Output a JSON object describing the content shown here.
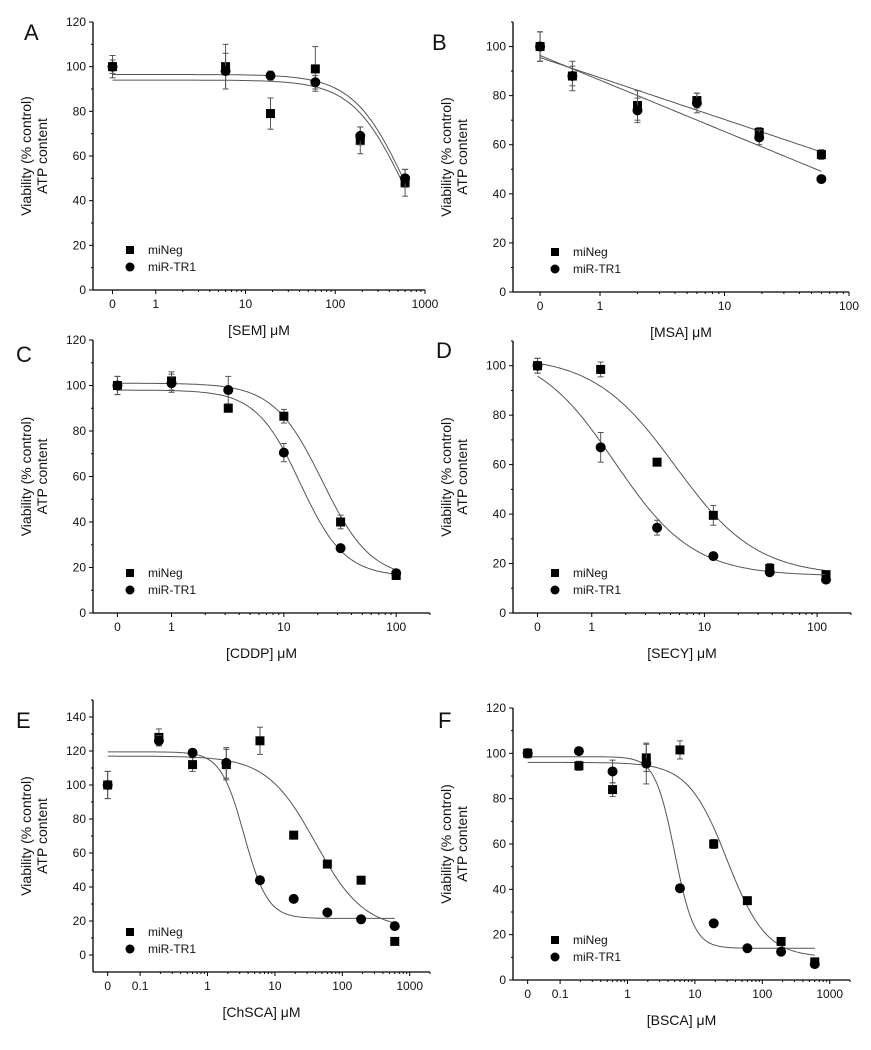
{
  "chart_data": [
    {
      "type": "scatter",
      "panel": "A",
      "xlabel": "[SEM] μM",
      "ylabel": [
        "Viability (% control)",
        "ATP content"
      ],
      "xscale": "log",
      "zero_position": 0.33,
      "xlim": [
        0.2,
        1000
      ],
      "ylim": [
        0,
        120
      ],
      "yticks": [
        0,
        20,
        40,
        60,
        80,
        100,
        120
      ],
      "xticks": [
        "0",
        "1",
        "10",
        "100",
        "1000"
      ],
      "legend": "bottom-left",
      "x": [
        0,
        6,
        19,
        60,
        190,
        600
      ],
      "series": [
        {
          "name": "miNeg",
          "marker": "square",
          "values": [
            100,
            100,
            79,
            99,
            67,
            48
          ],
          "err": [
            5,
            10,
            7,
            10,
            6,
            6
          ],
          "fit": {
            "type": "4pl",
            "top": 94,
            "bottom": 0,
            "ic50": 580,
            "hill": 1.5
          }
        },
        {
          "name": "miR-TR1",
          "marker": "circle",
          "values": [
            100,
            98,
            96,
            93,
            69,
            50
          ],
          "err": [
            3,
            8,
            2,
            3,
            4,
            4
          ],
          "fit": {
            "type": "4pl",
            "top": 96.5,
            "bottom": 0,
            "ic50": 600,
            "hill": 1.5
          }
        }
      ]
    },
    {
      "type": "scatter",
      "panel": "B",
      "xlabel": "[MSA] μM",
      "ylabel": [
        "Viability (% control)",
        "ATP content"
      ],
      "xscale": "log",
      "zero_position": 0.33,
      "xlim": [
        0.2,
        100
      ],
      "ylim": [
        0,
        110
      ],
      "yticks": [
        0,
        20,
        40,
        60,
        80,
        100
      ],
      "xticks": [
        "0",
        "1",
        "10",
        "100"
      ],
      "legend": "bottom-left",
      "x": [
        0,
        0.6,
        2,
        6,
        19,
        60
      ],
      "series": [
        {
          "name": "miNeg",
          "marker": "square",
          "values": [
            100,
            88,
            76,
            78,
            65,
            56
          ],
          "err": [
            6,
            6,
            6,
            3,
            2,
            2
          ],
          "fit": {
            "type": "loglinear",
            "intercept": 87.3,
            "slope": -17
          }
        },
        {
          "name": "miR-TR1",
          "marker": "circle",
          "values": [
            100,
            88,
            74,
            77,
            63,
            46
          ],
          "err": [
            6,
            4,
            5,
            4,
            3,
            1
          ],
          "fit": {
            "type": "loglinear",
            "intercept": 86.3,
            "slope": -20.9
          }
        }
      ]
    },
    {
      "type": "scatter",
      "panel": "C",
      "xlabel": "[CDDP] μM",
      "ylabel": [
        "Viability (% control)",
        "ATP content"
      ],
      "xscale": "log",
      "zero_position": 0.33,
      "xlim": [
        0.2,
        200
      ],
      "ylim": [
        0,
        120
      ],
      "yticks": [
        0,
        20,
        40,
        60,
        80,
        100,
        120
      ],
      "xticks": [
        "0",
        "1",
        "10",
        "100"
      ],
      "legend": "bottom-left",
      "x": [
        0,
        1,
        3.2,
        10,
        32,
        100
      ],
      "series": [
        {
          "name": "miNeg",
          "marker": "square",
          "values": [
            100,
            102,
            90,
            86.5,
            40,
            16.5
          ],
          "err": [
            4,
            4,
            0,
            3,
            3,
            1
          ],
          "fit": {
            "type": "4pl",
            "top": 101,
            "bottom": 15,
            "ic50": 22,
            "hill": 2
          }
        },
        {
          "name": "miR-TR1",
          "marker": "circle",
          "values": [
            100,
            101,
            98,
            70.5,
            28.5,
            17.5
          ],
          "err": [
            4,
            4,
            6,
            4,
            1,
            1
          ],
          "fit": {
            "type": "4pl",
            "top": 98,
            "bottom": 16,
            "ic50": 14,
            "hill": 2.2
          }
        }
      ]
    },
    {
      "type": "scatter",
      "panel": "D",
      "xlabel": "[SECY] μM",
      "ylabel": [
        "Viability (% control)",
        "ATP content"
      ],
      "xscale": "log",
      "zero_position": 0.33,
      "xlim": [
        0.2,
        200
      ],
      "ylim": [
        0,
        110
      ],
      "yticks": [
        0,
        20,
        40,
        60,
        80,
        100
      ],
      "xticks": [
        "0",
        "1",
        "10",
        "100"
      ],
      "legend": "bottom-left",
      "x": [
        0,
        1.2,
        3.8,
        12,
        38,
        120
      ],
      "series": [
        {
          "name": "miNeg",
          "marker": "square",
          "values": [
            100,
            98.5,
            61,
            39.5,
            18,
            15.5
          ],
          "err": [
            3,
            3,
            1,
            4,
            2,
            1
          ],
          "fit": {
            "type": "4pl",
            "top": 104,
            "bottom": 15,
            "ic50": 5.5,
            "hill": 1.2
          }
        },
        {
          "name": "miR-TR1",
          "marker": "circle",
          "values": [
            100,
            67,
            34.5,
            23,
            16.5,
            13.5
          ],
          "err": [
            3,
            6,
            3,
            1,
            1,
            1
          ],
          "fit": {
            "type": "4pl",
            "top": 107,
            "bottom": 15,
            "ic50": 1.6,
            "hill": 1.25
          }
        }
      ]
    },
    {
      "type": "scatter",
      "panel": "E",
      "xlabel": "[ChSCA] μM",
      "ylabel": [
        "Viability (% control)",
        "ATP content"
      ],
      "xscale": "log",
      "zero_position": 0.033,
      "xlim": [
        0.02,
        2000
      ],
      "ylim": [
        -10,
        150
      ],
      "yticks": [
        0,
        20,
        40,
        60,
        80,
        100,
        120,
        140
      ],
      "xticks": [
        "0",
        "0.1",
        "1",
        "10",
        "100",
        "1000"
      ],
      "legend": "bottom-left",
      "x": [
        0,
        0.19,
        0.6,
        1.9,
        6,
        19,
        60,
        190,
        600
      ],
      "series": [
        {
          "name": "miNeg",
          "marker": "square",
          "values": [
            100,
            128,
            112,
            112,
            126,
            70.5,
            53.5,
            44,
            8
          ],
          "err": [
            8,
            5,
            4,
            9,
            8,
            1,
            1,
            1,
            1
          ],
          "fit": {
            "type": "4pl",
            "top": 117,
            "bottom": 15,
            "ic50": 40,
            "hill": 1.2
          }
        },
        {
          "name": "miR-TR1",
          "marker": "circle",
          "values": [
            100,
            126,
            119,
            113,
            44,
            33,
            25,
            21,
            17
          ],
          "err": [
            8,
            3,
            1,
            9,
            1,
            1,
            1,
            1,
            1
          ],
          "fit": {
            "type": "4pl",
            "top": 119.5,
            "bottom": 21.5,
            "ic50": 3.5,
            "hill": 2.5
          }
        }
      ]
    },
    {
      "type": "scatter",
      "panel": "F",
      "xlabel": "[BSCA] μM",
      "ylabel": [
        "Viability (% control)",
        "ATP content"
      ],
      "xscale": "log",
      "zero_position": 0.033,
      "xlim": [
        0.02,
        2000
      ],
      "ylim": [
        0,
        120
      ],
      "yticks": [
        0,
        20,
        40,
        60,
        80,
        100,
        120
      ],
      "xticks": [
        "0",
        "0.1",
        "1",
        "10",
        "100",
        "1000"
      ],
      "legend": "bottom-left",
      "x": [
        0,
        0.19,
        0.6,
        1.9,
        6,
        19,
        60,
        190,
        600
      ],
      "series": [
        {
          "name": "miNeg",
          "marker": "square",
          "values": [
            100,
            94.5,
            84,
            98,
            101.5,
            60,
            35,
            17,
            8
          ],
          "err": [
            2,
            2,
            3,
            6,
            4,
            2,
            1,
            1,
            1
          ],
          "fit": {
            "type": "4pl",
            "top": 96,
            "bottom": 10,
            "ic50": 30,
            "hill": 1.5
          }
        },
        {
          "name": "miR-TR1",
          "marker": "circle",
          "values": [
            100,
            101,
            92,
            95.5,
            40.5,
            25,
            14,
            12.5,
            7
          ],
          "err": [
            2,
            1,
            5,
            9,
            1,
            1,
            1,
            1,
            1
          ],
          "fit": {
            "type": "4pl",
            "top": 98.5,
            "bottom": 14,
            "ic50": 5,
            "hill": 3
          }
        }
      ]
    }
  ]
}
